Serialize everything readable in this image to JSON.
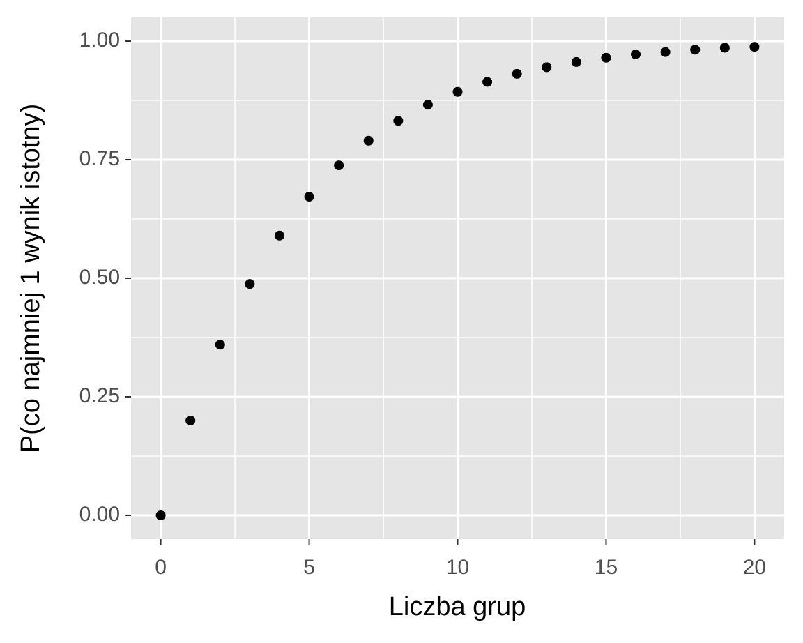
{
  "chart_data": {
    "type": "scatter",
    "x_label": "Liczba grup",
    "y_label": "P(co najmniej 1 wynik istotny)",
    "x": [
      0,
      1,
      2,
      3,
      4,
      5,
      6,
      7,
      8,
      9,
      10,
      11,
      12,
      13,
      14,
      15,
      16,
      17,
      18,
      19,
      20
    ],
    "values": [
      0,
      0.2,
      0.36,
      0.488,
      0.59,
      0.672,
      0.738,
      0.79,
      0.832,
      0.866,
      0.893,
      0.914,
      0.931,
      0.945,
      0.956,
      0.965,
      0.972,
      0.977,
      0.982,
      0.986,
      0.988
    ],
    "color": "#000000",
    "xlim": [
      -1,
      21
    ],
    "xticks": [
      0,
      5,
      10,
      15,
      20
    ],
    "ylim": [
      -0.05,
      1.05
    ],
    "yticks": [
      {
        "value": 0,
        "label": "0.00"
      },
      {
        "value": 0.25,
        "label": "0.25"
      },
      {
        "value": 0.5,
        "label": "0.50"
      },
      {
        "value": 0.75,
        "label": "0.75"
      },
      {
        "value": 1,
        "label": "1.00"
      }
    ],
    "grid": true
  }
}
